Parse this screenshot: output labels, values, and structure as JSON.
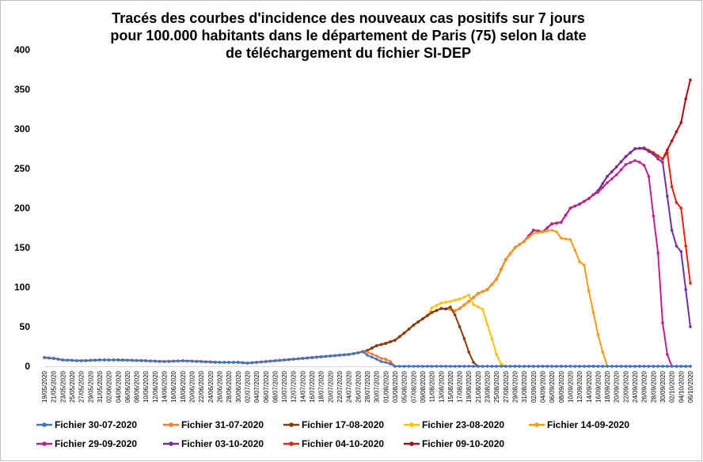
{
  "chart_data": {
    "type": "line",
    "title_lines": [
      "Tracés des courbes d'incidence des nouveaux cas positifs sur 7 jours",
      "pour 100.000 habitants dans le département de Paris (75) selon la date",
      "de téléchargement du fichier SI-DEP"
    ],
    "xlabel": "",
    "ylabel": "",
    "ylim": [
      0,
      400
    ],
    "yticks": [
      0,
      50,
      100,
      150,
      200,
      250,
      300,
      350,
      400
    ],
    "grid": false,
    "legend_position": "bottom",
    "x_start": "19/05/2020",
    "x_end": "06/10/2020",
    "x_tick_step_days": 2,
    "x_tick_labels": [
      "19/05/2020",
      "21/05/2020",
      "23/05/2020",
      "25/05/2020",
      "27/05/2020",
      "29/05/2020",
      "31/05/2020",
      "02/06/2020",
      "04/06/2020",
      "06/06/2020",
      "08/06/2020",
      "10/06/2020",
      "12/06/2020",
      "14/06/2020",
      "16/06/2020",
      "18/06/2020",
      "20/06/2020",
      "22/06/2020",
      "24/06/2020",
      "26/06/2020",
      "28/06/2020",
      "30/06/2020",
      "02/07/2020",
      "04/07/2020",
      "06/07/2020",
      "08/07/2020",
      "10/07/2020",
      "12/07/2020",
      "14/07/2020",
      "16/07/2020",
      "18/07/2020",
      "20/07/2020",
      "22/07/2020",
      "24/07/2020",
      "26/07/2020",
      "28/07/2020",
      "30/07/2020",
      "01/08/2020",
      "03/08/2020",
      "05/08/2020",
      "07/08/2020",
      "09/08/2020",
      "11/08/2020",
      "13/08/2020",
      "15/08/2020",
      "17/08/2020",
      "19/08/2020",
      "21/08/2020",
      "23/08/2020",
      "25/08/2020",
      "27/08/2020",
      "29/08/2020",
      "31/08/2020",
      "02/09/2020",
      "04/09/2020",
      "06/09/2020",
      "08/09/2020",
      "10/09/2020",
      "12/09/2020",
      "14/09/2020",
      "16/09/2020",
      "18/09/2020",
      "20/09/2020",
      "22/09/2020",
      "24/09/2020",
      "26/09/2020",
      "28/09/2020",
      "30/09/2020",
      "02/10/2020",
      "04/10/2020",
      "06/10/2020"
    ],
    "base_curve": [
      [
        "19/05/2020",
        11
      ],
      [
        "21/05/2020",
        10
      ],
      [
        "23/05/2020",
        8
      ],
      [
        "27/05/2020",
        7
      ],
      [
        "31/05/2020",
        8
      ],
      [
        "04/06/2020",
        8
      ],
      [
        "10/06/2020",
        7
      ],
      [
        "14/06/2020",
        6
      ],
      [
        "18/06/2020",
        7
      ],
      [
        "22/06/2020",
        6
      ],
      [
        "26/06/2020",
        5
      ],
      [
        "30/06/2020",
        5
      ],
      [
        "02/07/2020",
        4
      ],
      [
        "06/07/2020",
        6
      ],
      [
        "10/07/2020",
        8
      ],
      [
        "14/07/2020",
        10
      ],
      [
        "18/07/2020",
        12
      ],
      [
        "22/07/2020",
        14
      ],
      [
        "24/07/2020",
        15
      ],
      [
        "26/07/2020",
        17
      ],
      [
        "28/07/2020",
        20
      ],
      [
        "30/07/2020",
        26
      ],
      [
        "01/08/2020",
        29
      ],
      [
        "03/08/2020",
        33
      ],
      [
        "05/08/2020",
        42
      ],
      [
        "07/08/2020",
        52
      ],
      [
        "09/08/2020",
        60
      ],
      [
        "11/08/2020",
        68
      ],
      [
        "13/08/2020",
        73
      ],
      [
        "15/08/2020",
        72
      ],
      [
        "16/08/2020",
        70
      ],
      [
        "17/08/2020",
        73
      ],
      [
        "19/08/2020",
        82
      ],
      [
        "21/08/2020",
        92
      ],
      [
        "23/08/2020",
        97
      ],
      [
        "25/08/2020",
        110
      ],
      [
        "27/08/2020",
        135
      ],
      [
        "29/08/2020",
        150
      ],
      [
        "31/08/2020",
        158
      ],
      [
        "02/09/2020",
        172
      ],
      [
        "04/09/2020",
        170
      ],
      [
        "06/09/2020",
        180
      ],
      [
        "08/09/2020",
        182
      ],
      [
        "10/09/2020",
        200
      ],
      [
        "12/09/2020",
        205
      ],
      [
        "14/09/2020",
        212
      ],
      [
        "16/09/2020",
        222
      ],
      [
        "18/09/2020",
        240
      ],
      [
        "20/09/2020",
        252
      ],
      [
        "22/09/2020",
        265
      ],
      [
        "24/09/2020",
        275
      ],
      [
        "26/09/2020",
        276
      ],
      [
        "28/09/2020",
        270
      ],
      [
        "30/09/2020",
        262
      ],
      [
        "02/10/2020",
        285
      ],
      [
        "04/10/2020",
        308
      ],
      [
        "05/10/2020",
        338
      ],
      [
        "06/10/2020",
        362
      ]
    ],
    "series": [
      {
        "name": "Fichier 30-07-2020",
        "color": "#4472C4",
        "end": "03/08/2020",
        "tail": [
          [
            "28/07/2020",
            14
          ],
          [
            "30/07/2020",
            9
          ],
          [
            "31/07/2020",
            6
          ],
          [
            "01/08/2020",
            5
          ],
          [
            "02/08/2020",
            3
          ],
          [
            "03/08/2020",
            0
          ]
        ]
      },
      {
        "name": "Fichier 31-07-2020",
        "color": "#ED7D31",
        "end": "03/08/2020",
        "tail": [
          [
            "28/07/2020",
            18
          ],
          [
            "30/07/2020",
            13
          ],
          [
            "31/07/2020",
            10
          ],
          [
            "01/08/2020",
            9
          ],
          [
            "02/08/2020",
            6
          ],
          [
            "03/08/2020",
            0
          ]
        ]
      },
      {
        "name": "Fichier 17-08-2020",
        "color": "#843C0C",
        "end": "21/08/2020",
        "tail": [
          [
            "15/08/2020",
            75
          ],
          [
            "16/08/2020",
            65
          ],
          [
            "17/08/2020",
            50
          ],
          [
            "18/08/2020",
            35
          ],
          [
            "19/08/2020",
            18
          ],
          [
            "20/08/2020",
            5
          ],
          [
            "21/08/2020",
            0
          ]
        ]
      },
      {
        "name": "Fichier 23-08-2020",
        "color": "#FFC000",
        "end": "27/08/2020",
        "tail": [
          [
            "11/08/2020",
            74
          ],
          [
            "13/08/2020",
            80
          ],
          [
            "15/08/2020",
            82
          ],
          [
            "17/08/2020",
            85
          ],
          [
            "19/08/2020",
            90
          ],
          [
            "20/08/2020",
            78
          ],
          [
            "21/08/2020",
            75
          ],
          [
            "22/08/2020",
            72
          ],
          [
            "23/08/2020",
            53
          ],
          [
            "24/08/2020",
            35
          ],
          [
            "25/08/2020",
            15
          ],
          [
            "26/08/2020",
            3
          ],
          [
            "27/08/2020",
            0
          ]
        ]
      },
      {
        "name": "Fichier 14-09-2020",
        "color": "#F39C12",
        "end": "18/09/2020",
        "tail": [
          [
            "31/08/2020",
            158
          ],
          [
            "02/09/2020",
            168
          ],
          [
            "04/09/2020",
            170
          ],
          [
            "06/09/2020",
            172
          ],
          [
            "07/09/2020",
            170
          ],
          [
            "08/09/2020",
            162
          ],
          [
            "10/09/2020",
            160
          ],
          [
            "11/09/2020",
            147
          ],
          [
            "12/09/2020",
            132
          ],
          [
            "13/09/2020",
            128
          ],
          [
            "14/09/2020",
            95
          ],
          [
            "15/09/2020",
            68
          ],
          [
            "16/09/2020",
            40
          ],
          [
            "17/09/2020",
            18
          ],
          [
            "18/09/2020",
            0
          ]
        ]
      },
      {
        "name": "Fichier 29-09-2020",
        "color": "#C0208A",
        "end": "02/10/2020",
        "tail": [
          [
            "16/09/2020",
            220
          ],
          [
            "18/09/2020",
            232
          ],
          [
            "20/09/2020",
            242
          ],
          [
            "22/09/2020",
            255
          ],
          [
            "24/09/2020",
            260
          ],
          [
            "25/09/2020",
            258
          ],
          [
            "26/09/2020",
            254
          ],
          [
            "27/09/2020",
            240
          ],
          [
            "28/09/2020",
            190
          ],
          [
            "29/09/2020",
            143
          ],
          [
            "30/09/2020",
            55
          ],
          [
            "01/10/2020",
            15
          ],
          [
            "02/10/2020",
            0
          ]
        ]
      },
      {
        "name": "Fichier 03-10-2020",
        "color": "#7030A0",
        "end": "06/10/2020",
        "tail": [
          [
            "26/09/2020",
            275
          ],
          [
            "28/09/2020",
            268
          ],
          [
            "29/09/2020",
            262
          ],
          [
            "30/09/2020",
            258
          ],
          [
            "01/10/2020",
            215
          ],
          [
            "02/10/2020",
            172
          ],
          [
            "03/10/2020",
            152
          ],
          [
            "04/10/2020",
            145
          ],
          [
            "05/10/2020",
            97
          ],
          [
            "06/10/2020",
            50
          ]
        ]
      },
      {
        "name": "Fichier 04-10-2020",
        "color": "#E8200C",
        "end": "06/10/2020",
        "tail": [
          [
            "28/09/2020",
            270
          ],
          [
            "30/09/2020",
            262
          ],
          [
            "01/10/2020",
            270
          ],
          [
            "02/10/2020",
            227
          ],
          [
            "03/10/2020",
            207
          ],
          [
            "04/10/2020",
            200
          ],
          [
            "05/10/2020",
            152
          ],
          [
            "06/10/2020",
            105
          ]
        ]
      },
      {
        "name": "Fichier 09-10-2020",
        "color": "#A50F14",
        "end": "06/10/2020",
        "tail": []
      }
    ]
  }
}
